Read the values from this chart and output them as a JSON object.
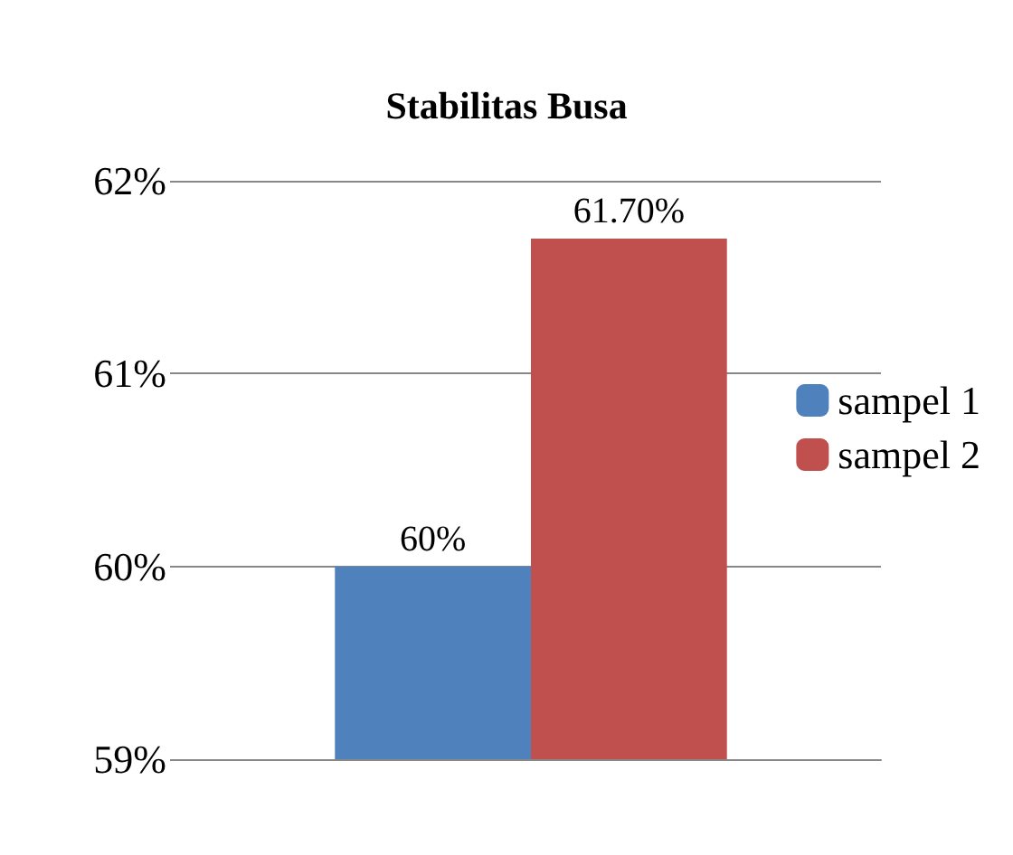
{
  "chart_data": {
    "type": "bar",
    "title": "Stabilitas Busa",
    "categories": [
      null
    ],
    "series": [
      {
        "name": "sampel 1",
        "color": "#4f81bd",
        "values": [
          60
        ],
        "value_labels": [
          "60%"
        ]
      },
      {
        "name": "sampel 2",
        "color": "#c0504d",
        "values": [
          61.7
        ],
        "value_labels": [
          "61.70%"
        ]
      }
    ],
    "ylim": [
      59,
      62
    ],
    "yticks": [
      {
        "value": 59,
        "label": "59%"
      },
      {
        "value": 60,
        "label": "60%"
      },
      {
        "value": 61,
        "label": "61%"
      },
      {
        "value": 62,
        "label": "62%"
      }
    ],
    "grid": "y",
    "legend": "right"
  }
}
